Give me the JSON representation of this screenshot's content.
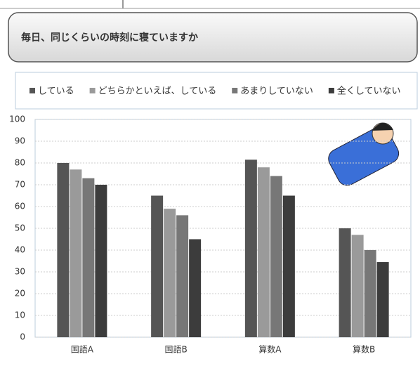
{
  "chart_data": {
    "type": "bar",
    "title": "毎日、同じくらいの時刻に寝ていますか",
    "categories": [
      "国語A",
      "国語B",
      "算数A",
      "算数B"
    ],
    "series": [
      {
        "name": "している",
        "color": "#555555",
        "values": [
          80,
          65,
          81.5,
          50
        ]
      },
      {
        "name": "どちらかといえば、している",
        "color": "#9a9a9a",
        "values": [
          77,
          59,
          78,
          47
        ]
      },
      {
        "name": "あまりしていない",
        "color": "#777777",
        "values": [
          73,
          56,
          74,
          40
        ]
      },
      {
        "name": "全くしていない",
        "color": "#3c3c3c",
        "values": [
          70,
          45,
          65,
          34.5
        ]
      }
    ],
    "ylim": [
      0,
      100
    ],
    "yticks": [
      0,
      10,
      20,
      30,
      40,
      50,
      60,
      70,
      80,
      90,
      100
    ],
    "grid": true
  }
}
